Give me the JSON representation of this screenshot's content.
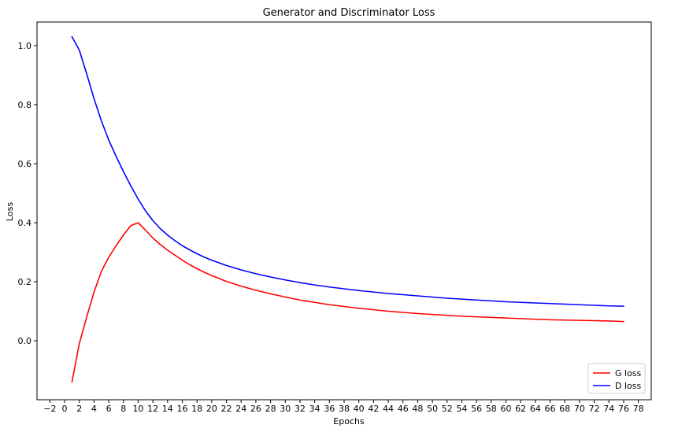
{
  "chart_data": {
    "type": "line",
    "title": "Generator and Discriminator Loss",
    "xlabel": "Epochs",
    "ylabel": "Loss",
    "xlim": [
      -3.75,
      79.75
    ],
    "ylim": [
      -0.2,
      1.08
    ],
    "xticks": [
      -2,
      0,
      2,
      4,
      6,
      8,
      10,
      12,
      14,
      16,
      18,
      20,
      22,
      24,
      26,
      28,
      30,
      32,
      34,
      36,
      38,
      40,
      42,
      44,
      46,
      48,
      50,
      52,
      54,
      56,
      58,
      60,
      62,
      64,
      66,
      68,
      70,
      72,
      74,
      76,
      78
    ],
    "yticks": [
      0.0,
      0.2,
      0.4,
      0.6,
      0.8,
      1.0
    ],
    "grid": false,
    "legend": "lower-right",
    "series": [
      {
        "name": "G loss",
        "color": "#ff0000",
        "x": [
          1,
          2,
          3,
          4,
          5,
          6,
          7,
          8,
          9,
          10,
          11,
          12,
          13,
          14,
          15,
          16,
          17,
          18,
          19,
          20,
          22,
          24,
          26,
          28,
          30,
          32,
          34,
          36,
          38,
          40,
          42,
          44,
          46,
          48,
          50,
          52,
          54,
          56,
          58,
          60,
          62,
          64,
          66,
          68,
          70,
          72,
          74,
          76
        ],
        "y": [
          -0.14,
          -0.01,
          0.08,
          0.165,
          0.235,
          0.283,
          0.322,
          0.358,
          0.39,
          0.4,
          0.375,
          0.348,
          0.326,
          0.307,
          0.29,
          0.273,
          0.258,
          0.244,
          0.232,
          0.221,
          0.201,
          0.185,
          0.171,
          0.159,
          0.148,
          0.138,
          0.13,
          0.122,
          0.116,
          0.11,
          0.105,
          0.1,
          0.096,
          0.092,
          0.089,
          0.086,
          0.083,
          0.081,
          0.079,
          0.077,
          0.075,
          0.073,
          0.071,
          0.07,
          0.069,
          0.068,
          0.067,
          0.065
        ]
      },
      {
        "name": "D loss",
        "color": "#0000ff",
        "x": [
          1,
          2,
          3,
          4,
          5,
          6,
          7,
          8,
          9,
          10,
          11,
          12,
          13,
          14,
          15,
          16,
          17,
          18,
          19,
          20,
          22,
          24,
          26,
          28,
          30,
          32,
          34,
          36,
          38,
          40,
          42,
          44,
          46,
          48,
          50,
          52,
          54,
          56,
          58,
          60,
          62,
          64,
          66,
          68,
          70,
          72,
          74,
          76
        ],
        "y": [
          1.03,
          0.985,
          0.905,
          0.82,
          0.745,
          0.68,
          0.625,
          0.573,
          0.525,
          0.48,
          0.44,
          0.407,
          0.38,
          0.358,
          0.339,
          0.322,
          0.308,
          0.295,
          0.283,
          0.273,
          0.255,
          0.24,
          0.227,
          0.216,
          0.206,
          0.197,
          0.189,
          0.182,
          0.176,
          0.17,
          0.165,
          0.16,
          0.156,
          0.152,
          0.148,
          0.144,
          0.141,
          0.138,
          0.135,
          0.132,
          0.13,
          0.128,
          0.126,
          0.124,
          0.122,
          0.12,
          0.118,
          0.117
        ]
      }
    ]
  }
}
